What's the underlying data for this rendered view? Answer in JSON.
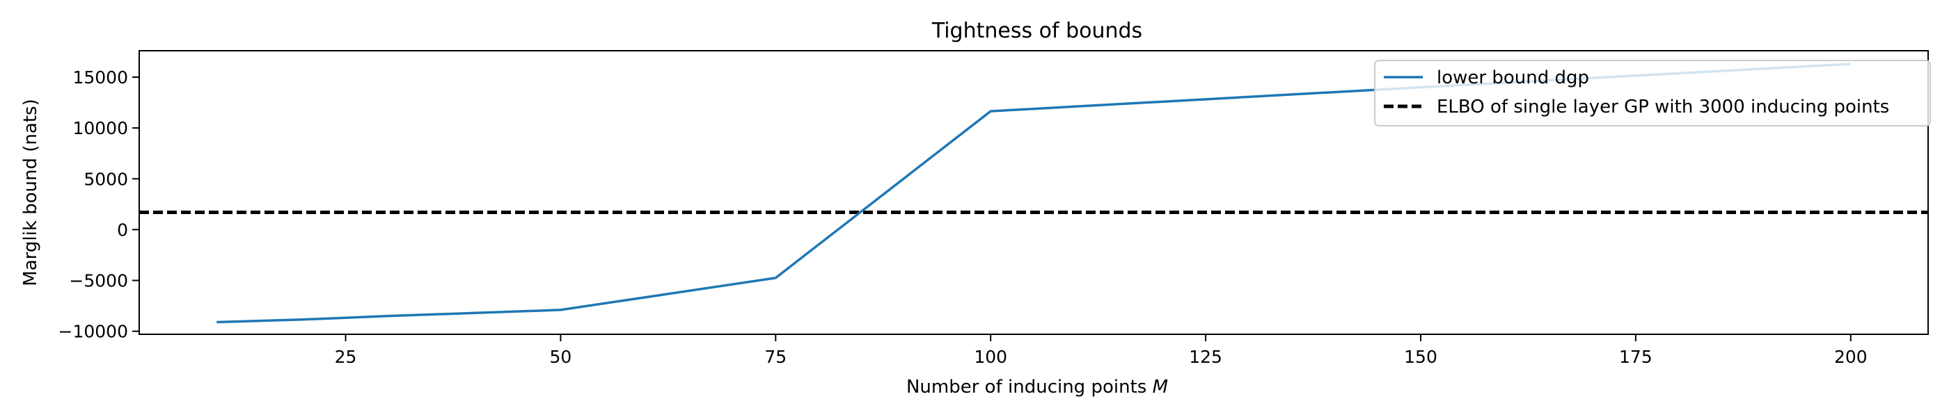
{
  "chart_data": {
    "type": "line",
    "title": "Tightness of bounds",
    "xlabel": "Number of inducing points ",
    "xlabel_var": "M",
    "ylabel": "Marglik bound (nats)",
    "xlim": [
      1,
      209
    ],
    "ylim": [
      -10300,
      17600
    ],
    "xticks": [
      25,
      50,
      75,
      100,
      125,
      150,
      175,
      200
    ],
    "xtick_labels": [
      "25",
      "50",
      "75",
      "100",
      "125",
      "150",
      "175",
      "200"
    ],
    "yticks": [
      -10000,
      -5000,
      0,
      5000,
      10000,
      15000
    ],
    "ytick_labels": [
      "−10000",
      "−5000",
      "0",
      "5000",
      "10000",
      "15000"
    ],
    "grid": false,
    "legend_position": "top-right",
    "series": [
      {
        "name": "lower bound dgp",
        "style": "solid",
        "color": "#1f77b4",
        "x": [
          10,
          20,
          30,
          50,
          75,
          100,
          150,
          200
        ],
        "y": [
          -9100,
          -8850,
          -8500,
          -7900,
          -4750,
          11650,
          14000,
          16300
        ]
      }
    ],
    "reference_lines": [
      {
        "name": "ELBO of single layer GP with 3000 inducing points",
        "style": "dashed",
        "color": "#000000",
        "y": 1700
      }
    ]
  }
}
